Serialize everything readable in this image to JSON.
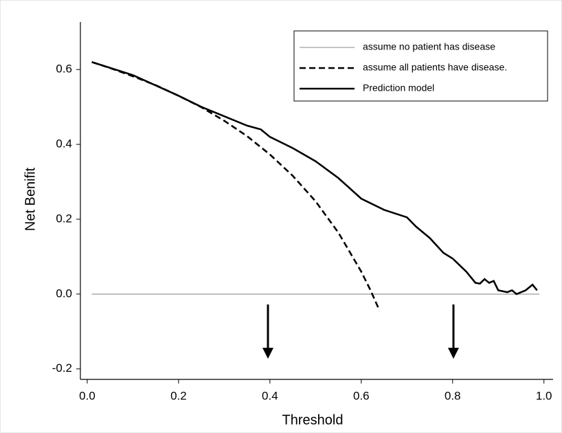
{
  "chart_data": {
    "type": "line",
    "xlabel": "Threshold",
    "ylabel": "Net Benifit",
    "xlim": [
      -0.015,
      1.02
    ],
    "ylim": [
      -0.228,
      0.727
    ],
    "xticks": [
      {
        "value": 0,
        "label": "0.0"
      },
      0.2,
      0.4,
      0.6,
      0.8,
      {
        "value": 1,
        "label": "1.0"
      }
    ],
    "yticks": [
      -0.2,
      {
        "value": 0,
        "label": "0.0"
      },
      0.2,
      0.4,
      0.6
    ],
    "legend": "top-right",
    "series": [
      {
        "name": "assume no patient has disease",
        "color": "#b0b0b0",
        "style": "solid",
        "x": [
          0.01,
          0.99
        ],
        "values": [
          0,
          0
        ]
      },
      {
        "name": "assume all patients have disease.",
        "color": "#000000",
        "style": "dashed",
        "x": [
          0.01,
          0.05,
          0.1,
          0.15,
          0.2,
          0.25,
          0.3,
          0.35,
          0.4,
          0.45,
          0.5,
          0.55,
          0.6,
          0.62,
          0.64
        ],
        "values": [
          0.62,
          0.604,
          0.582,
          0.558,
          0.53,
          0.499,
          0.463,
          0.422,
          0.373,
          0.316,
          0.248,
          0.164,
          0.06,
          0.011,
          -0.044
        ]
      },
      {
        "name": "Prediction model",
        "color": "#000000",
        "style": "solid",
        "x": [
          0.01,
          0.1,
          0.2,
          0.25,
          0.3,
          0.35,
          0.38,
          0.4,
          0.45,
          0.5,
          0.55,
          0.6,
          0.65,
          0.7,
          0.72,
          0.75,
          0.78,
          0.8,
          0.83,
          0.85,
          0.86,
          0.87,
          0.88,
          0.89,
          0.9,
          0.92,
          0.93,
          0.94,
          0.96,
          0.975,
          0.985
        ],
        "values": [
          0.62,
          0.585,
          0.53,
          0.5,
          0.475,
          0.45,
          0.44,
          0.42,
          0.39,
          0.355,
          0.31,
          0.255,
          0.225,
          0.205,
          0.18,
          0.15,
          0.11,
          0.095,
          0.06,
          0.03,
          0.028,
          0.04,
          0.03,
          0.035,
          0.01,
          0.005,
          0.01,
          0,
          0.01,
          0.025,
          0.01
        ]
      }
    ]
  }
}
